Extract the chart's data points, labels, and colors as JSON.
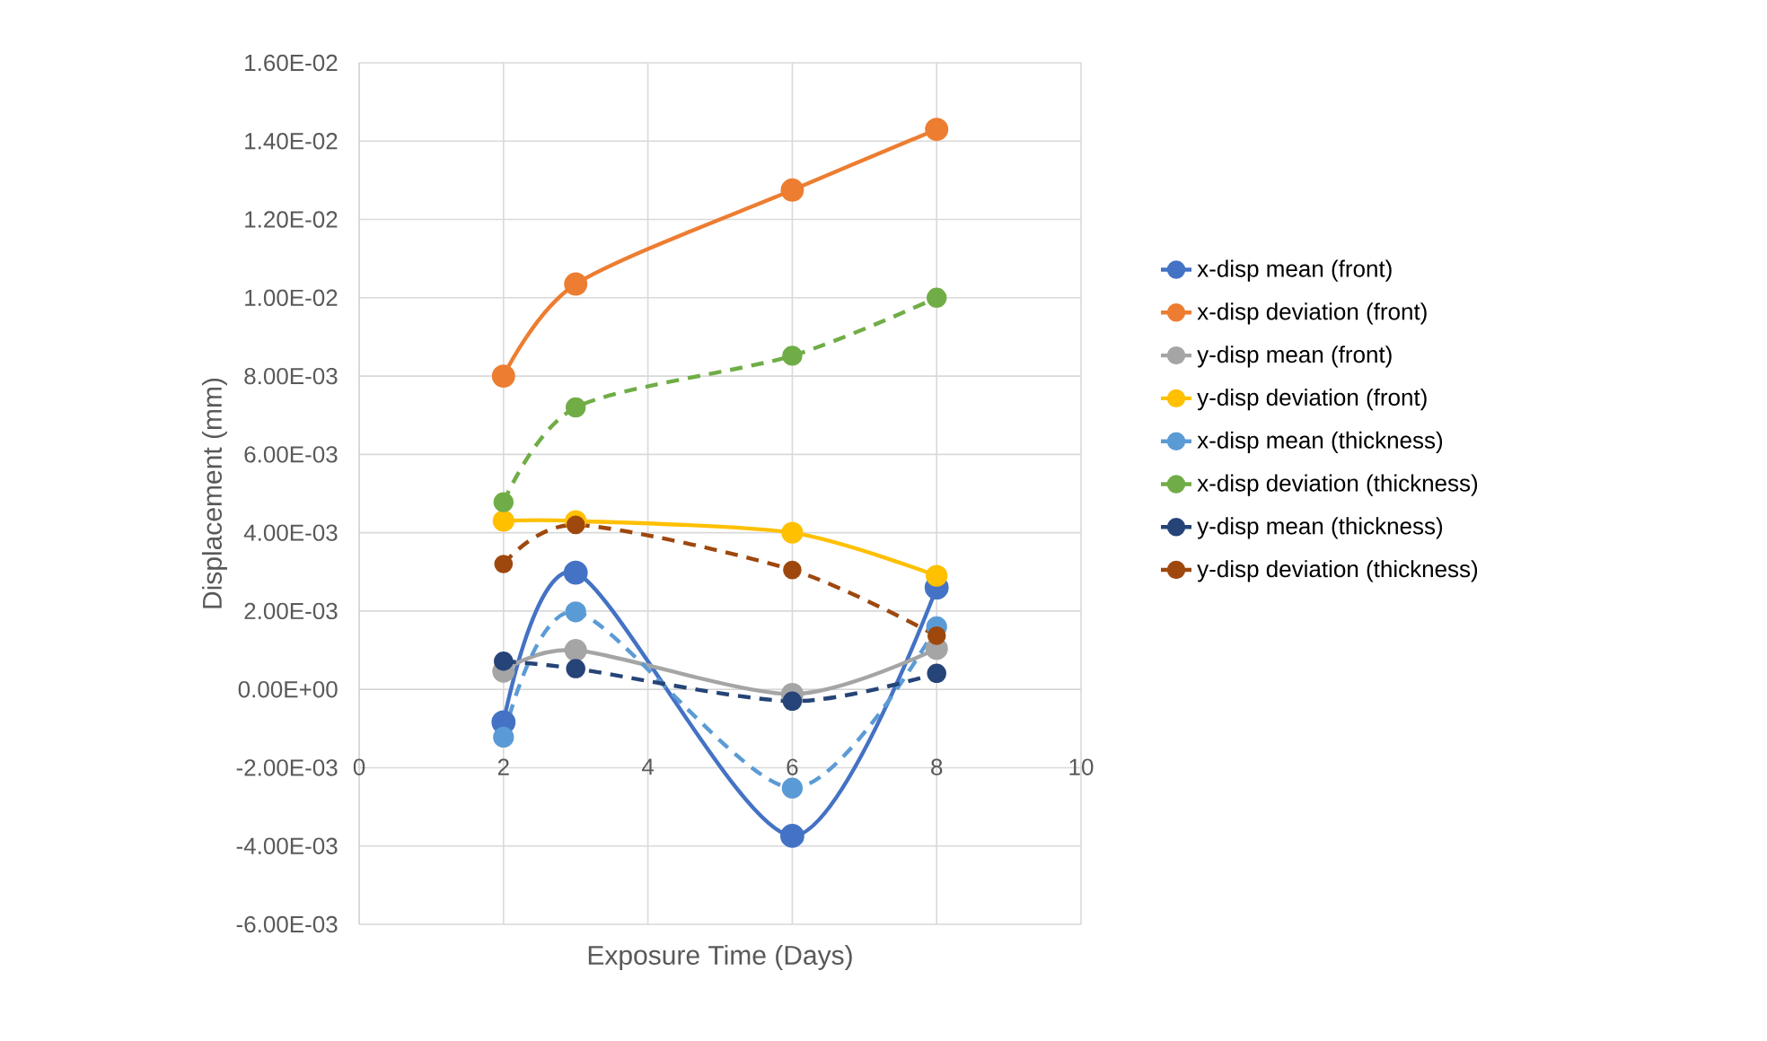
{
  "chart_data": {
    "type": "line",
    "xlabel": "Exposure Time (Days)",
    "ylabel": "Displacement (mm)",
    "x": [
      2,
      3,
      6,
      8
    ],
    "xlim": [
      0,
      10
    ],
    "xticks": [
      0,
      2,
      4,
      6,
      8,
      10
    ],
    "ylim": [
      -0.006,
      0.016
    ],
    "yticks": [
      {
        "value": -0.006,
        "label": "-6.00E-03"
      },
      {
        "value": -0.004,
        "label": "-4.00E-03"
      },
      {
        "value": -0.002,
        "label": "-2.00E-03"
      },
      {
        "value": 0,
        "label": "0.00E+00"
      },
      {
        "value": 0.002,
        "label": "2.00E-03"
      },
      {
        "value": 0.004,
        "label": "4.00E-03"
      },
      {
        "value": 0.006,
        "label": "6.00E-03"
      },
      {
        "value": 0.008,
        "label": "8.00E-03"
      },
      {
        "value": 0.01,
        "label": "1.00E-02"
      },
      {
        "value": 0.012,
        "label": "1.20E-02"
      },
      {
        "value": 0.014,
        "label": "1.40E-02"
      },
      {
        "value": 0.016,
        "label": "1.60E-02"
      }
    ],
    "grid": true,
    "legend": "right",
    "marker": "circle",
    "series": [
      {
        "name": "x-disp mean (front)",
        "color": "#4472c4",
        "line_style": "solid",
        "values": [
          -0.00084,
          0.00298,
          -0.00374,
          0.0026
        ]
      },
      {
        "name": "x-disp deviation (front)",
        "color": "#ed7d31",
        "line_style": "solid",
        "values": [
          0.008,
          0.01035,
          0.01275,
          0.0143
        ]
      },
      {
        "name": "y-disp mean (front)",
        "color": "#a5a5a5",
        "line_style": "solid",
        "values": [
          0.00046,
          0.001,
          -0.00012,
          0.00104
        ]
      },
      {
        "name": "y-disp deviation (front)",
        "color": "#ffc000",
        "line_style": "solid",
        "values": [
          0.0043,
          0.0043,
          0.004,
          0.0029
        ]
      },
      {
        "name": "x-disp mean (thickness)",
        "color": "#5b9bd5",
        "line_style": "dashed",
        "values": [
          -0.00122,
          0.00198,
          -0.00252,
          0.0016
        ]
      },
      {
        "name": "x-disp deviation (thickness)",
        "color": "#70ad47",
        "line_style": "dashed",
        "values": [
          0.00478,
          0.0072,
          0.00852,
          0.01
        ]
      },
      {
        "name": "y-disp mean (thickness)",
        "color": "#264478",
        "line_style": "dashed",
        "values": [
          0.00072,
          0.00053,
          -0.0003,
          0.00041
        ]
      },
      {
        "name": "y-disp deviation (thickness)",
        "color": "#9e480e",
        "line_style": "dashed",
        "values": [
          0.0032,
          0.0042,
          0.00305,
          0.00137
        ]
      }
    ]
  }
}
